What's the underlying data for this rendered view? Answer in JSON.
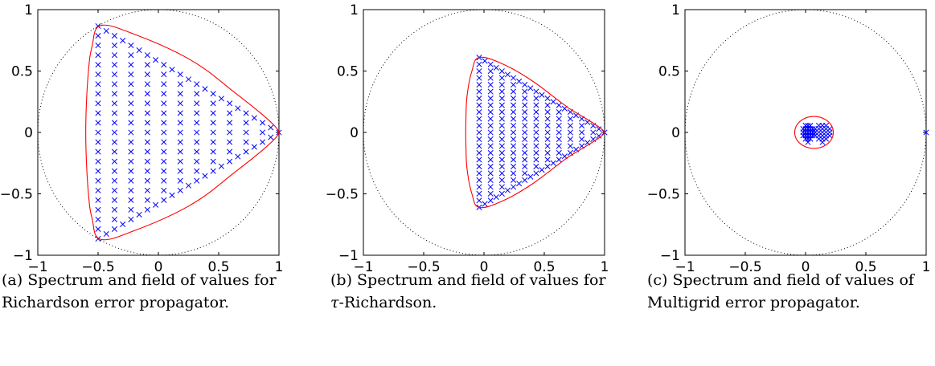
{
  "figures": [
    {
      "id": "a",
      "caption": "(a) Spectrum and field of values for Richardson error propagator."
    },
    {
      "id": "b",
      "caption_prefix": "(b) Spectrum and field of values for ",
      "caption_symbol": "τ",
      "caption_suffix": "-Richardson."
    },
    {
      "id": "c",
      "caption": "(c) Spectrum and field of values of Multigrid error propagator."
    }
  ],
  "colors": {
    "eigenvalues": "#0000ff",
    "field_of_values": "#ff0000",
    "unit_circle": "#000000",
    "axes": "#000000"
  },
  "chart_data": [
    {
      "type": "scatter",
      "title": "",
      "xlabel": "",
      "ylabel": "",
      "xlim": [
        -1,
        1
      ],
      "ylim": [
        -1,
        1
      ],
      "xticks": [
        -1,
        -0.5,
        0,
        0.5,
        1
      ],
      "yticks": [
        -1,
        -0.5,
        0,
        0.5,
        1
      ],
      "xtick_labels": [
        "−1",
        "−0.5",
        "0",
        "0.5",
        "1"
      ],
      "ytick_labels": [
        "−1",
        "−0.5",
        "0",
        "0.5",
        "1"
      ],
      "grid": false,
      "unit_circle": true,
      "eigenvalue_triangle": {
        "vertices": [
          [
            1,
            0
          ],
          [
            -0.5,
            0.866
          ],
          [
            -0.5,
            -0.866
          ]
        ],
        "marker": "x"
      },
      "field_of_values": [
        [
          1,
          0
        ],
        [
          0.6,
          0.35
        ],
        [
          0.25,
          0.6
        ],
        [
          -0.2,
          0.8
        ],
        [
          -0.48,
          0.87
        ],
        [
          -0.55,
          0.7
        ],
        [
          -0.58,
          0.5
        ],
        [
          -0.6,
          0.15
        ],
        [
          -0.6,
          -0.15
        ],
        [
          -0.58,
          -0.5
        ],
        [
          -0.55,
          -0.7
        ],
        [
          -0.48,
          -0.87
        ],
        [
          -0.2,
          -0.8
        ],
        [
          0.25,
          -0.6
        ],
        [
          0.6,
          -0.35
        ]
      ]
    },
    {
      "type": "scatter",
      "title": "",
      "xlabel": "",
      "ylabel": "",
      "xlim": [
        -1,
        1
      ],
      "ylim": [
        -1,
        1
      ],
      "xticks": [
        -1,
        -0.5,
        0,
        0.5,
        1
      ],
      "yticks": [
        -1,
        -0.5,
        0,
        0.5,
        1
      ],
      "xtick_labels": [
        "−1",
        "−0.5",
        "0",
        "0.5",
        "1"
      ],
      "ytick_labels": [
        "−1",
        "−0.5",
        "0",
        "0.5",
        "1"
      ],
      "grid": false,
      "unit_circle": true,
      "eigenvalue_triangle": {
        "vertices": [
          [
            1,
            0
          ],
          [
            -0.04,
            0.61
          ],
          [
            -0.04,
            -0.61
          ]
        ],
        "marker": "x"
      },
      "field_of_values": [
        [
          1,
          0
        ],
        [
          0.7,
          0.2
        ],
        [
          0.4,
          0.42
        ],
        [
          0.15,
          0.56
        ],
        [
          -0.04,
          0.61
        ],
        [
          -0.1,
          0.5
        ],
        [
          -0.14,
          0.3
        ],
        [
          -0.15,
          0.1
        ],
        [
          -0.15,
          -0.1
        ],
        [
          -0.14,
          -0.3
        ],
        [
          -0.1,
          -0.5
        ],
        [
          -0.04,
          -0.61
        ],
        [
          0.15,
          -0.56
        ],
        [
          0.4,
          -0.42
        ],
        [
          0.7,
          -0.2
        ]
      ]
    },
    {
      "type": "scatter",
      "title": "",
      "xlabel": "",
      "ylabel": "",
      "xlim": [
        -1,
        1
      ],
      "ylim": [
        -1,
        1
      ],
      "xticks": [
        -1,
        -0.5,
        0,
        0.5,
        1
      ],
      "yticks": [
        -1,
        -0.5,
        0,
        0.5,
        1
      ],
      "xtick_labels": [
        "−1",
        "−0.5",
        "0",
        "0.5",
        "1"
      ],
      "ytick_labels": [
        "−1",
        "−0.5",
        "0",
        "0.5",
        "1"
      ],
      "grid": false,
      "unit_circle": true,
      "eigenvalue_clusters": [
        {
          "center": [
            0.02,
            0.0
          ],
          "rx": 0.04,
          "ry": 0.08
        },
        {
          "center": [
            0.14,
            0.0
          ],
          "rx": 0.06,
          "ry": 0.08
        }
      ],
      "isolated_eigenvalue": [
        1,
        0
      ],
      "field_of_values_ellipse": {
        "center": [
          0.07,
          0.0
        ],
        "rx": 0.16,
        "ry": 0.13
      }
    }
  ]
}
